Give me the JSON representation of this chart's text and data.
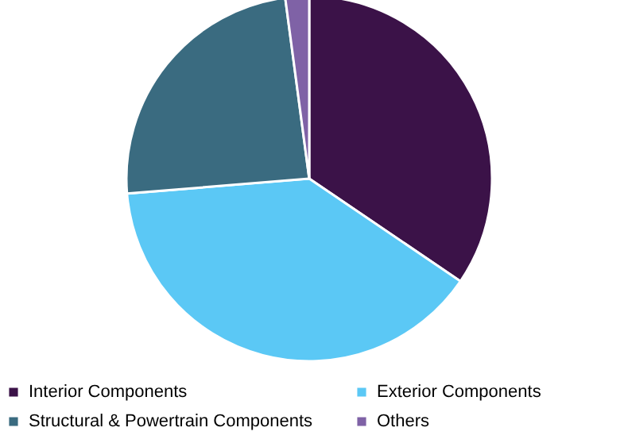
{
  "chart_data": {
    "type": "pie",
    "categories": [
      "Interior Components",
      "Exterior Components",
      "Structural & Powertrain  Components",
      "Others"
    ],
    "values": [
      34.5,
      39.2,
      24.2,
      2.1
    ],
    "colors": [
      "#3b1248",
      "#5bc8f5",
      "#3a6b80",
      "#7f62a6"
    ],
    "legend": "bottom"
  }
}
